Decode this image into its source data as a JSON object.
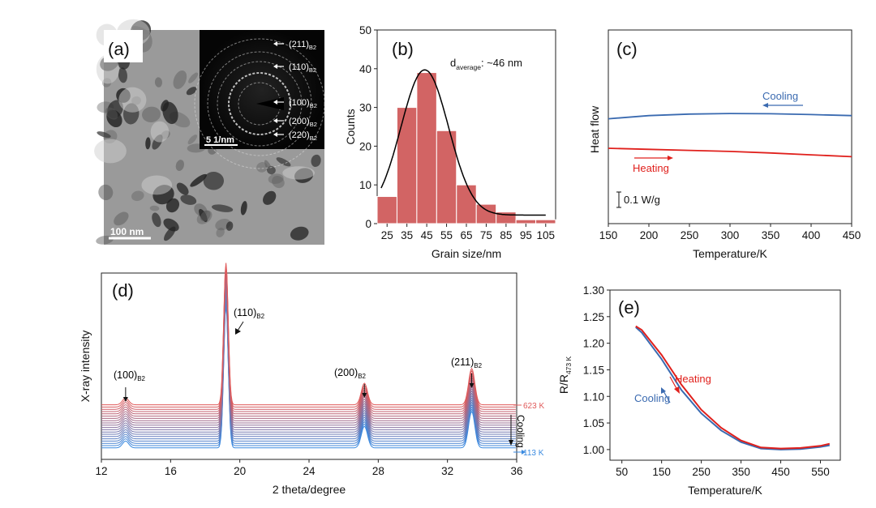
{
  "panels": {
    "a": {
      "label": "(a)",
      "scale_bar": "100 nm",
      "inset_scale_bar": "5 1/nm",
      "rings": [
        {
          "hkl": "(211)",
          "sub": "B2"
        },
        {
          "hkl": "(110)",
          "sub": "B2"
        },
        {
          "hkl": "(100)",
          "sub": "B2"
        },
        {
          "hkl": "(200)",
          "sub": "B2"
        },
        {
          "hkl": "(220)",
          "sub": "B2"
        }
      ]
    },
    "b": {
      "label": "(b)",
      "annotation_main": "d",
      "annotation_sub": "average",
      "annotation_rest": ": ~46 nm"
    },
    "c": {
      "label": "(c)",
      "cooling": "Cooling",
      "heating": "Heating",
      "scale": "0.1 W/g"
    },
    "d": {
      "label": "(d)",
      "peaks": [
        {
          "hkl": "(100)",
          "sub": "B2"
        },
        {
          "hkl": "(110)",
          "sub": "B2"
        },
        {
          "hkl": "(200)",
          "sub": "B2"
        },
        {
          "hkl": "(211)",
          "sub": "B2"
        }
      ],
      "top_temp": "623 K",
      "bottom_temp": "113 K",
      "cooling": "Cooling"
    },
    "e": {
      "label": "(e)",
      "heating": "Heating",
      "cooling": "Cooling"
    }
  },
  "colors": {
    "bar": "#d26464",
    "cooling": "#3a6ab0",
    "heating": "#e0201c",
    "scan_top": "#e05a5a",
    "scan_bottom": "#3a8ae0"
  },
  "chart_data": [
    {
      "id": "b",
      "type": "bar",
      "categories": [
        "25",
        "35",
        "45",
        "55",
        "65",
        "75",
        "85",
        "95",
        "105"
      ],
      "values": [
        7,
        30,
        39,
        24,
        10,
        5,
        3,
        1,
        1
      ],
      "fit_curve": {
        "type": "gaussian",
        "center": 44,
        "sigma": 12,
        "amplitude": 37.5,
        "baseline": 2.2
      },
      "xlabel": "Grain size/nm",
      "ylabel": "Counts",
      "xticks": [
        "25",
        "35",
        "45",
        "55",
        "65",
        "75",
        "85",
        "95",
        "105"
      ],
      "yticks": [
        "0",
        "10",
        "20",
        "30",
        "40",
        "50"
      ],
      "ylim": [
        0,
        50
      ],
      "xlim": [
        20,
        110
      ]
    },
    {
      "id": "c",
      "type": "line",
      "xlabel": "Temperature/K",
      "ylabel": "Heat flow",
      "xticks": [
        "150",
        "200",
        "250",
        "300",
        "350",
        "400",
        "450"
      ],
      "xlim": [
        150,
        450
      ],
      "series": [
        {
          "name": "Cooling",
          "x": [
            150,
            200,
            250,
            300,
            350,
            400,
            450
          ],
          "y": [
            0.28,
            0.31,
            0.325,
            0.33,
            0.328,
            0.32,
            0.31
          ]
        },
        {
          "name": "Heating",
          "x": [
            150,
            200,
            250,
            300,
            350,
            400,
            450
          ],
          "y": [
            0.0,
            -0.01,
            -0.02,
            -0.03,
            -0.045,
            -0.062,
            -0.08
          ]
        }
      ]
    },
    {
      "id": "d",
      "type": "line",
      "xlabel": "2 theta/degree",
      "ylabel": "X-ray intensity",
      "xticks": [
        "12",
        "16",
        "20",
        "24",
        "28",
        "32",
        "36"
      ],
      "xlim": [
        12,
        36
      ],
      "n_scans": 20,
      "temperature_range": [
        113,
        623
      ],
      "peaks_2theta": [
        13.4,
        19.2,
        27.2,
        33.4
      ],
      "peak_heights": [
        0.6,
        12.5,
        1.9,
        3.2
      ]
    },
    {
      "id": "e",
      "type": "line",
      "xlabel": "Temperature/K",
      "ylabel": "R/R",
      "ylabel_sub": "473 K",
      "xticks": [
        "50",
        "150",
        "250",
        "350",
        "450",
        "550"
      ],
      "yticks": [
        "1.00",
        "1.05",
        "1.10",
        "1.15",
        "1.20",
        "1.25",
        "1.30"
      ],
      "xlim": [
        20,
        600
      ],
      "ylim": [
        0.98,
        1.3
      ],
      "series": [
        {
          "name": "Heating",
          "x": [
            85,
            100,
            150,
            200,
            250,
            300,
            350,
            400,
            450,
            500,
            550,
            573
          ],
          "y": [
            1.232,
            1.225,
            1.178,
            1.122,
            1.075,
            1.041,
            1.017,
            1.004,
            1.002,
            1.003,
            1.007,
            1.011
          ]
        },
        {
          "name": "Cooling",
          "x": [
            85,
            100,
            150,
            200,
            250,
            300,
            350,
            400,
            450,
            500,
            550,
            573
          ],
          "y": [
            1.23,
            1.22,
            1.17,
            1.112,
            1.068,
            1.036,
            1.014,
            1.002,
            1.0,
            1.001,
            1.005,
            1.008
          ]
        }
      ]
    }
  ]
}
